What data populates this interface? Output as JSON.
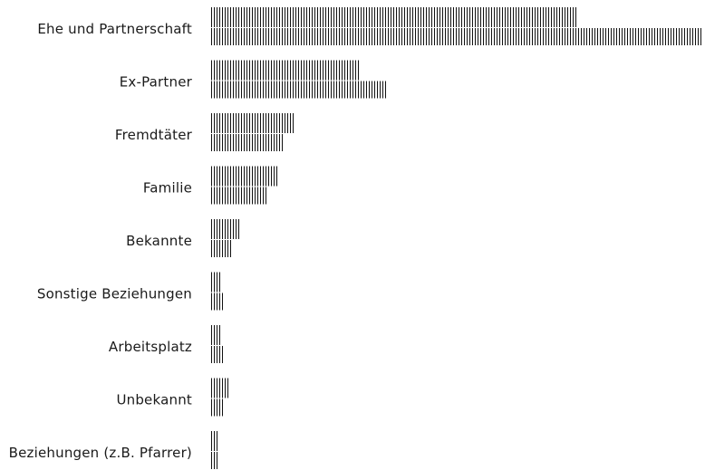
{
  "chart_data": {
    "type": "bar",
    "categories": [
      "Ehe und Partnerschaft",
      "Ex-Partner",
      "Fremdtäter",
      "Familie",
      "Bekannte",
      "Sonstige Beziehungen",
      "Arbeitsplatz",
      "Unbekannt",
      "Beziehungen (z.B. Pfarrer)"
    ],
    "series": [
      {
        "values": [
          135,
          55,
          31,
          25,
          11,
          4,
          4,
          7,
          3
        ]
      },
      {
        "values": [
          181,
          65,
          27,
          21,
          8,
          5,
          5,
          5,
          3
        ]
      }
    ],
    "xlabel": "",
    "ylabel": "",
    "grid": false,
    "colors": {
      "marks": "#111111",
      "labels": "#1a1a1a",
      "background": "#ffffff"
    }
  }
}
